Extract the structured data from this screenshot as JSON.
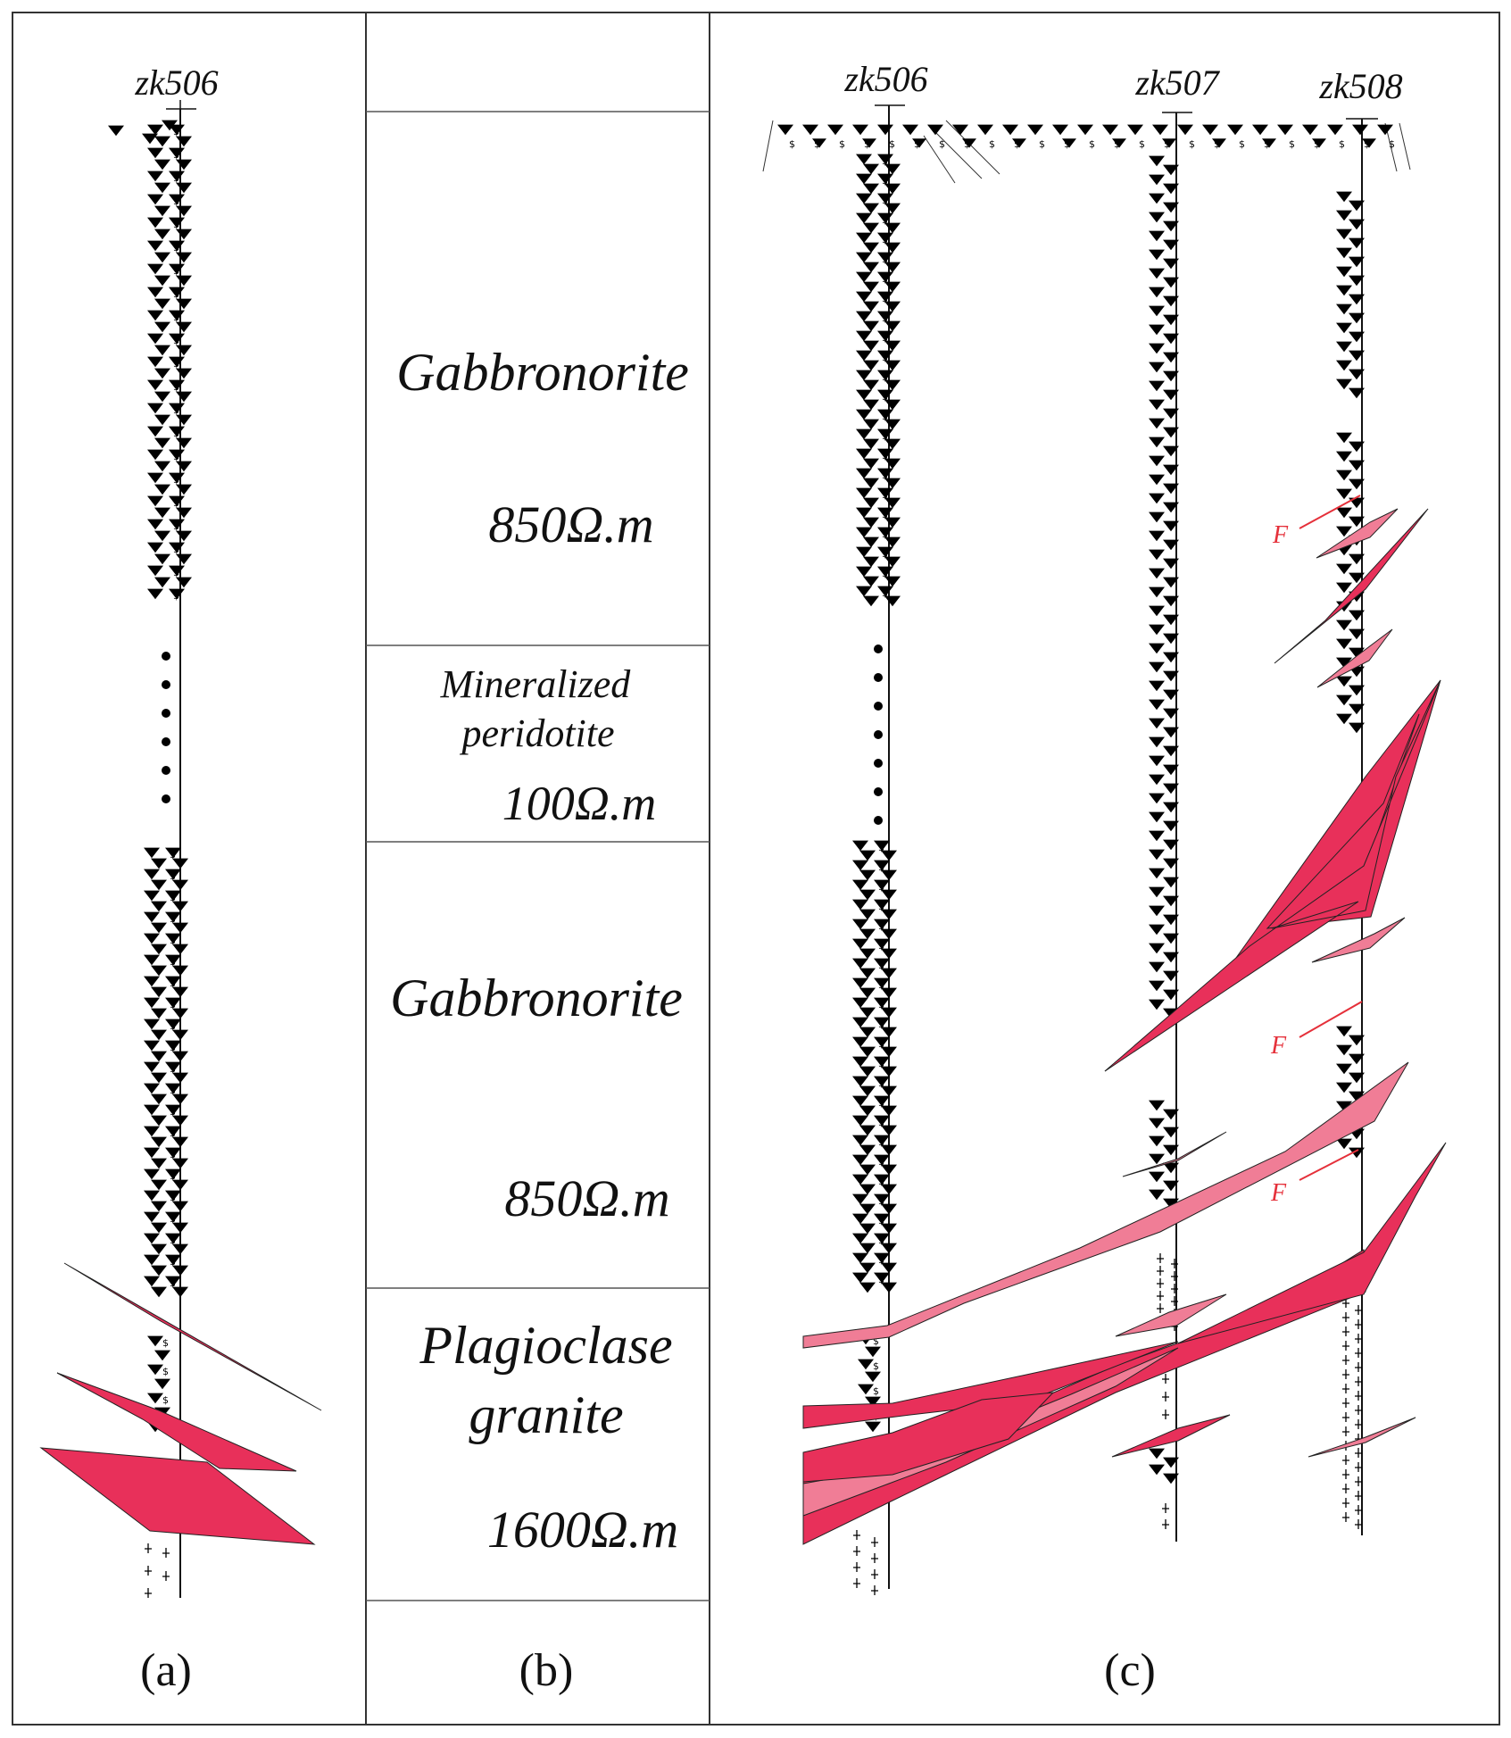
{
  "panels": {
    "a": {
      "caption": "(a)",
      "boreholes": [
        "zk506"
      ]
    },
    "b": {
      "caption": "(b)",
      "layers": [
        {
          "name": "Gabbronorite",
          "resistivity": "850Ω.m"
        },
        {
          "name_line1": "Mineralized",
          "name_line2": "peridotite",
          "resistivity": "100Ω.m"
        },
        {
          "name": "Gabbronorite",
          "resistivity": "850Ω.m"
        },
        {
          "name_line1": "Plagioclase",
          "name_line2": "granite",
          "resistivity": "1600Ω.m"
        }
      ]
    },
    "c": {
      "caption": "(c)",
      "boreholes": [
        "zk506",
        "zk507",
        "zk508"
      ],
      "fault_label": "F"
    }
  },
  "colors": {
    "orebody": "#e8305a",
    "orebody_light": "#f07d96",
    "fault": "#e5303a",
    "lithology_symbol": "#000000",
    "frame": "#333333"
  }
}
